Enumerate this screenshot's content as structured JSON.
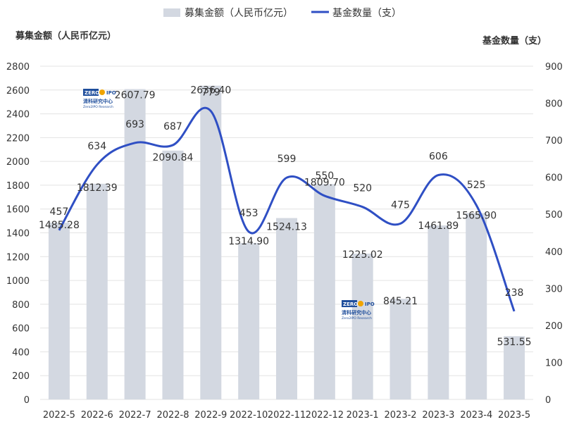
{
  "chart_data": {
    "type": "bar+line",
    "categories": [
      "2022-5",
      "2022-6",
      "2022-7",
      "2022-8",
      "2022-9",
      "2022-10",
      "2022-11",
      "2022-12",
      "2023-1",
      "2023-2",
      "2023-3",
      "2023-4",
      "2023-5"
    ],
    "series": [
      {
        "name": "募集金额（人民币亿元）",
        "type": "bar",
        "axis": "left",
        "values": [
          1485.28,
          1812.39,
          2607.79,
          2090.84,
          2636.4,
          1314.9,
          1524.13,
          1809.7,
          1225.02,
          845.21,
          1461.89,
          1565.9,
          531.55
        ],
        "labels": [
          "1485.28",
          "1812.39",
          "2607.79",
          "2090.84",
          "2636.40",
          "1314.90",
          "1524.13",
          "1809.70",
          "1225.02",
          "845.21",
          "1461.89",
          "1565.90",
          "531.55"
        ]
      },
      {
        "name": "基金数量（支）",
        "type": "line",
        "axis": "right",
        "values": [
          457,
          634,
          693,
          687,
          779,
          453,
          599,
          550,
          520,
          475,
          606,
          525,
          238
        ],
        "labels": [
          "457",
          "634",
          "693",
          "687",
          "779",
          "453",
          "599",
          "550",
          "520",
          "475",
          "606",
          "525",
          "238"
        ]
      }
    ],
    "left_axis": {
      "title": "募集金额（人民币亿元）",
      "min": 0,
      "max": 2800,
      "step": 200,
      "ticks": [
        "0",
        "200",
        "400",
        "600",
        "800",
        "1000",
        "1200",
        "1400",
        "1600",
        "1800",
        "2000",
        "2200",
        "2400",
        "2600",
        "2800"
      ]
    },
    "right_axis": {
      "title": "基金数量（支）",
      "min": 0,
      "max": 900,
      "step": 100,
      "ticks": [
        "0",
        "100",
        "200",
        "300",
        "400",
        "500",
        "600",
        "700",
        "800",
        "900"
      ]
    },
    "legend": {
      "position": "top-center",
      "items": [
        "募集金额（人民币亿元）",
        "基金数量（支）"
      ]
    },
    "grid": true
  },
  "watermark": {
    "brand_zero": "ZERO",
    "brand_ipo": "IPO",
    "name_cn": "清科研究中心",
    "name_en": "Zero2IPO Research"
  },
  "colors": {
    "bar": "#d3d8e1",
    "line": "#2f4fc4",
    "grid": "#e3e3e3",
    "text": "#333333",
    "logo_blue": "#1f4e9c",
    "logo_orange": "#f0a400"
  }
}
